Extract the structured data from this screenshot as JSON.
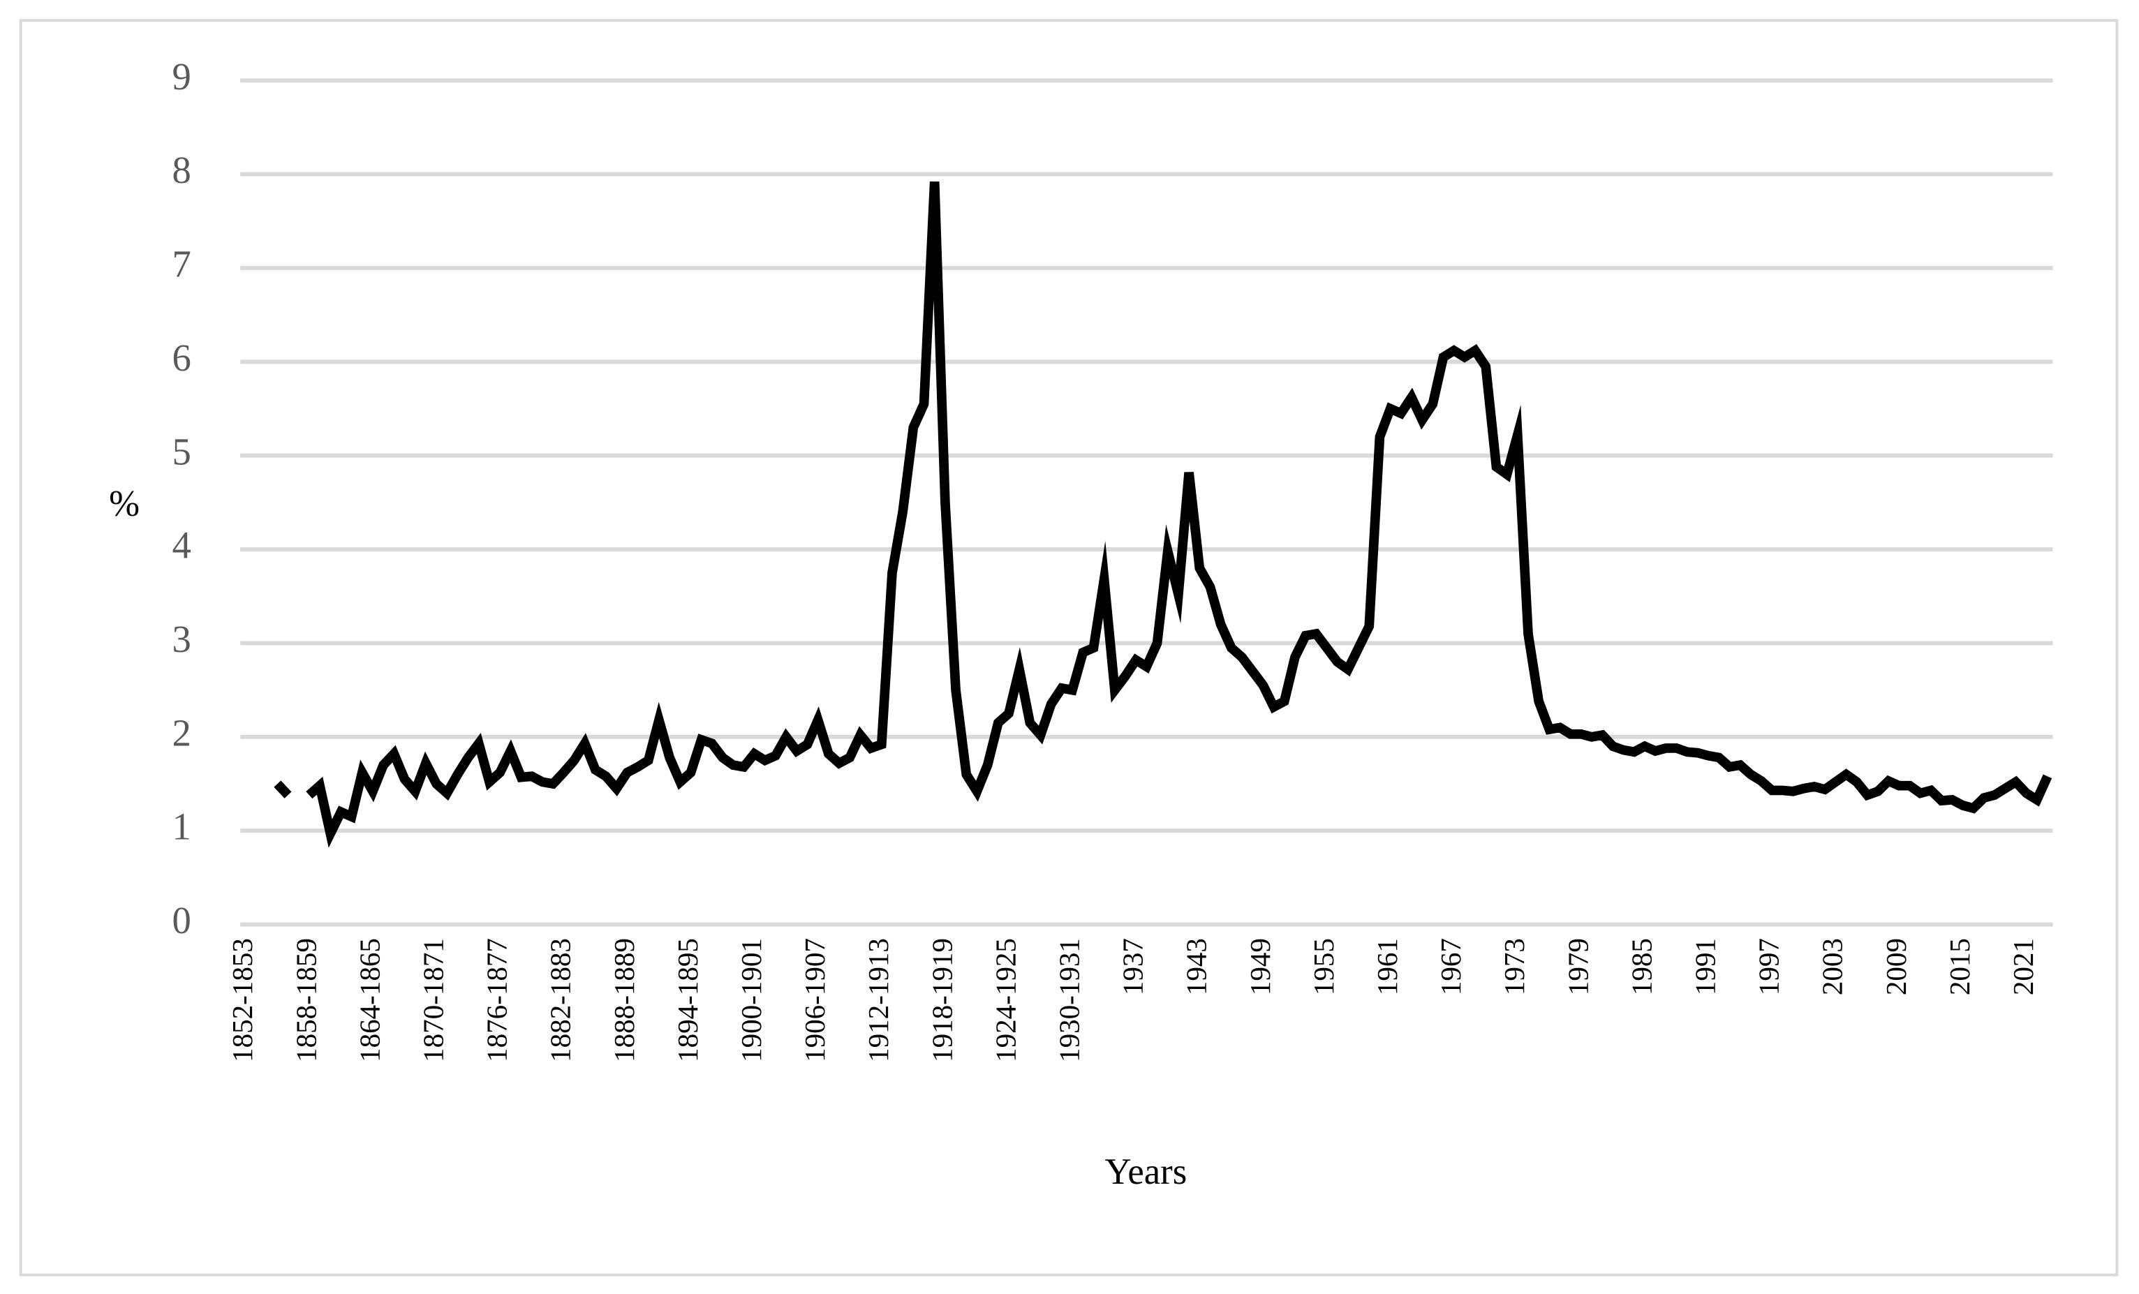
{
  "chart_data": {
    "type": "line",
    "x_label": "Years",
    "y_label": "%",
    "categories": [
      "1852-1853",
      null,
      null,
      null,
      null,
      null,
      "1858-1859",
      null,
      null,
      null,
      null,
      null,
      "1864-1865",
      null,
      null,
      null,
      null,
      null,
      "1870-1871",
      null,
      null,
      null,
      null,
      null,
      "1876-1877",
      null,
      null,
      null,
      null,
      null,
      "1882-1883",
      null,
      null,
      null,
      null,
      null,
      "1888-1889",
      null,
      null,
      null,
      null,
      null,
      "1894-1895",
      null,
      null,
      null,
      null,
      null,
      "1900-1901",
      null,
      null,
      null,
      null,
      null,
      "1906-1907",
      null,
      null,
      null,
      null,
      null,
      "1912-1913",
      null,
      null,
      null,
      null,
      null,
      "1918-1919",
      null,
      null,
      null,
      null,
      null,
      "1924-1925",
      null,
      null,
      null,
      null,
      null,
      "1930-1931",
      null,
      null,
      null,
      null,
      null,
      "1937",
      null,
      null,
      null,
      null,
      null,
      "1943",
      null,
      null,
      null,
      null,
      null,
      "1949",
      null,
      null,
      null,
      null,
      null,
      "1955",
      null,
      null,
      null,
      null,
      null,
      "1961",
      null,
      null,
      null,
      null,
      null,
      "1967",
      null,
      null,
      null,
      null,
      null,
      "1973",
      null,
      null,
      null,
      null,
      null,
      "1979",
      null,
      null,
      null,
      null,
      null,
      "1985",
      null,
      null,
      null,
      null,
      null,
      "1991",
      null,
      null,
      null,
      null,
      null,
      "1997",
      null,
      null,
      null,
      null,
      null,
      "2003",
      null,
      null,
      null,
      null,
      null,
      "2009",
      null,
      null,
      null,
      null,
      null,
      "2015",
      null,
      null,
      null,
      null,
      null,
      "2021",
      null,
      null
    ],
    "values": [
      null,
      null,
      null,
      1.5,
      1.38,
      null,
      1.38,
      1.48,
      0.97,
      1.2,
      1.15,
      1.62,
      1.42,
      1.7,
      1.82,
      1.55,
      1.42,
      1.72,
      1.5,
      1.4,
      1.6,
      1.78,
      1.93,
      1.52,
      1.62,
      1.85,
      1.57,
      1.58,
      1.52,
      1.5,
      1.62,
      1.75,
      1.93,
      1.65,
      1.58,
      1.45,
      1.62,
      1.68,
      1.75,
      2.18,
      1.78,
      1.52,
      1.62,
      1.97,
      1.93,
      1.78,
      1.7,
      1.68,
      1.82,
      1.75,
      1.8,
      2.0,
      1.85,
      1.92,
      2.18,
      1.82,
      1.72,
      1.78,
      2.02,
      1.88,
      1.92,
      3.75,
      4.4,
      5.3,
      5.55,
      7.92,
      4.5,
      2.5,
      1.6,
      1.42,
      1.7,
      2.15,
      2.25,
      2.72,
      2.15,
      2.02,
      2.35,
      2.52,
      2.5,
      2.9,
      2.95,
      3.68,
      2.5,
      2.65,
      2.82,
      2.75,
      3.0,
      3.98,
      3.52,
      4.82,
      3.8,
      3.6,
      3.2,
      2.95,
      2.85,
      2.7,
      2.55,
      2.32,
      2.38,
      2.85,
      3.08,
      3.1,
      2.95,
      2.8,
      2.72,
      2.95,
      3.18,
      5.2,
      5.5,
      5.45,
      5.62,
      5.38,
      5.55,
      6.05,
      6.12,
      6.05,
      6.12,
      5.95,
      4.88,
      4.8,
      5.22,
      3.1,
      2.38,
      2.08,
      2.1,
      2.03,
      2.03,
      2.0,
      2.02,
      1.9,
      1.86,
      1.84,
      1.9,
      1.85,
      1.88,
      1.88,
      1.84,
      1.83,
      1.8,
      1.78,
      1.68,
      1.7,
      1.6,
      1.53,
      1.43,
      1.43,
      1.42,
      1.45,
      1.47,
      1.44,
      1.52,
      1.6,
      1.52,
      1.38,
      1.42,
      1.53,
      1.48,
      1.48,
      1.4,
      1.43,
      1.32,
      1.33,
      1.27,
      1.24,
      1.35,
      1.38,
      1.45,
      1.52,
      1.4,
      1.33,
      1.58
    ],
    "color": "#000000",
    "ylim": [
      0,
      9
    ],
    "yticks": [
      0,
      1,
      2,
      3,
      4,
      5,
      6,
      7,
      8,
      9
    ],
    "grid": true
  }
}
